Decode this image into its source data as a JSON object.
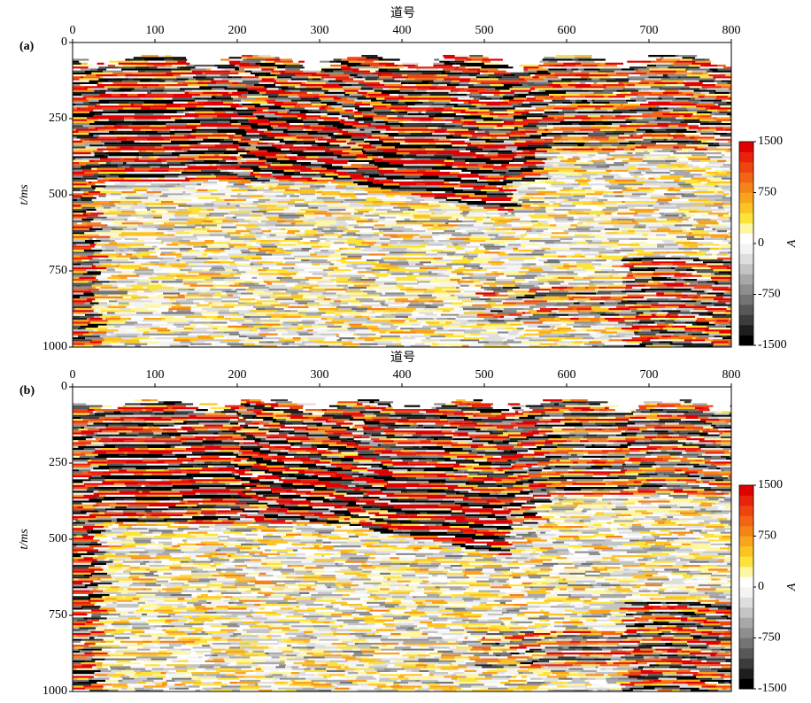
{
  "chart_data": [
    {
      "type": "heatmap",
      "panel_label": "(a)",
      "xlabel": "道号",
      "ylabel": "t/ms",
      "colorbar_label": "A",
      "xlim": [
        0,
        800
      ],
      "xticks": [
        0,
        100,
        200,
        300,
        400,
        500,
        600,
        700,
        800
      ],
      "ylim": [
        0,
        1000
      ],
      "y_inverted": true,
      "yticks": [
        0,
        250,
        500,
        750,
        1000
      ],
      "clim": [
        -1500,
        1500
      ],
      "cticks": [
        1500,
        750,
        0,
        -750,
        -1500
      ],
      "colorscale": [
        "#000000",
        "#1e1e1e",
        "#3c3c3c",
        "#585858",
        "#747474",
        "#8e8e8e",
        "#a8a8a8",
        "#c4c4c4",
        "#dedede",
        "#f4f4f4",
        "#ffffff",
        "#fff6a0",
        "#fde23a",
        "#fcc423",
        "#f9a51c",
        "#f58418",
        "#f26514",
        "#ee4410",
        "#e8220b",
        "#e00000"
      ]
    },
    {
      "type": "heatmap",
      "panel_label": "(b)",
      "xlabel": "道号",
      "ylabel": "t/ms",
      "colorbar_label": "A",
      "xlim": [
        0,
        800
      ],
      "xticks": [
        0,
        100,
        200,
        300,
        400,
        500,
        600,
        700,
        800
      ],
      "ylim": [
        0,
        1000
      ],
      "y_inverted": true,
      "yticks": [
        0,
        250,
        500,
        750,
        1000
      ],
      "clim": [
        -1500,
        1500
      ],
      "cticks": [
        1500,
        750,
        0,
        -750,
        -1500
      ],
      "colorscale": [
        "#000000",
        "#1e1e1e",
        "#3c3c3c",
        "#585858",
        "#747474",
        "#8e8e8e",
        "#a8a8a8",
        "#c4c4c4",
        "#dedede",
        "#f4f4f4",
        "#ffffff",
        "#fff6a0",
        "#fde23a",
        "#fcc423",
        "#f9a51c",
        "#f58418",
        "#f26514",
        "#ee4410",
        "#e8220b",
        "#e00000"
      ]
    }
  ]
}
